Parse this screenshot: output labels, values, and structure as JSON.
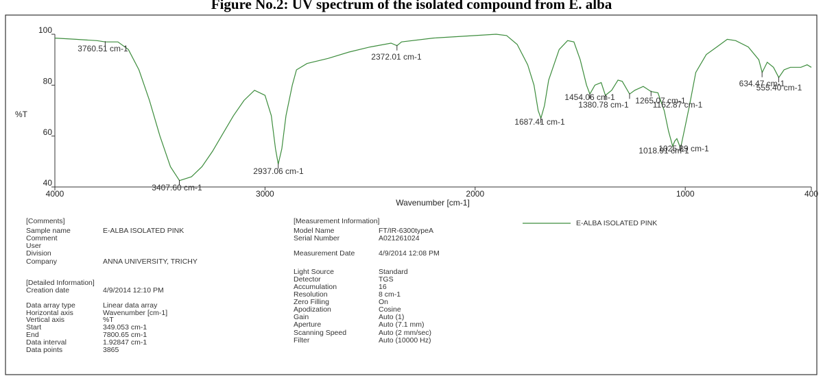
{
  "figure_title": "Figure No.2: UV spectrum of the isolated compound from E. alba",
  "chart_data": {
    "type": "line",
    "xlabel": "Wavenumber [cm-1]",
    "ylabel": "%T",
    "xlim": [
      4000,
      400
    ],
    "ylim": [
      40,
      100
    ],
    "xticks": [
      4000,
      3000,
      2000,
      1000,
      400
    ],
    "yticks": [
      40,
      60,
      80,
      100
    ],
    "series": [
      {
        "name": "E-ALBA ISOLATED PINK",
        "color": "#3c8c3c",
        "x": [
          4000,
          3900,
          3800,
          3760,
          3700,
          3650,
          3600,
          3550,
          3500,
          3450,
          3407,
          3350,
          3300,
          3250,
          3200,
          3150,
          3100,
          3050,
          3000,
          2970,
          2950,
          2937,
          2920,
          2900,
          2870,
          2850,
          2800,
          2700,
          2600,
          2500,
          2400,
          2372,
          2350,
          2200,
          2000,
          1900,
          1850,
          1800,
          1750,
          1720,
          1700,
          1687,
          1670,
          1650,
          1600,
          1560,
          1530,
          1500,
          1470,
          1454,
          1430,
          1400,
          1380,
          1350,
          1320,
          1300,
          1265,
          1240,
          1200,
          1163,
          1130,
          1100,
          1080,
          1060,
          1050,
          1040,
          1026,
          1019,
          1000,
          980,
          950,
          900,
          850,
          800,
          760,
          700,
          650,
          634,
          610,
          580,
          555,
          530,
          500,
          450,
          420,
          400
        ],
        "values": [
          98.5,
          98,
          97.5,
          97,
          97,
          94,
          86,
          74,
          60,
          48,
          42.5,
          44,
          48,
          54,
          61,
          68,
          74,
          78,
          76,
          68,
          55,
          49,
          55,
          68,
          80,
          86,
          88.5,
          90.5,
          93,
          95,
          96.5,
          95.5,
          97,
          98.5,
          99.5,
          100,
          99.5,
          96,
          88,
          80,
          70,
          67,
          72,
          82,
          94,
          97.5,
          97,
          90,
          80,
          76.5,
          80,
          81,
          76,
          78,
          82,
          81.5,
          76.5,
          78,
          79.5,
          77.5,
          77,
          70,
          62,
          56,
          58,
          59,
          56,
          56.5,
          64,
          72,
          85,
          92,
          95,
          98,
          97.5,
          95,
          90,
          85,
          89,
          87,
          83,
          86,
          87,
          87,
          88,
          87
        ]
      }
    ],
    "annotations": [
      {
        "label": "3760.51 cm-1",
        "x": 3760.51,
        "y": 97
      },
      {
        "label": "3407.60 cm-1",
        "x": 3407.6,
        "y": 42.5
      },
      {
        "label": "2937.06 cm-1",
        "x": 2937.06,
        "y": 49
      },
      {
        "label": "2372.01 cm-1",
        "x": 2372.01,
        "y": 95.5
      },
      {
        "label": "1687.41 cm-1",
        "x": 1687.41,
        "y": 67
      },
      {
        "label": "1454.06 cm-1",
        "x": 1454.06,
        "y": 76.5
      },
      {
        "label": "1380.78 cm-1",
        "x": 1380.78,
        "y": 76
      },
      {
        "label": "1265.07 cm-1",
        "x": 1265.07,
        "y": 76.5
      },
      {
        "label": "1162.87 cm-1",
        "x": 1162.87,
        "y": 77.5
      },
      {
        "label": "1025.89 cm-1",
        "x": 1025.89,
        "y": 56
      },
      {
        "label": "1018.91 cm-1",
        "x": 1018.91,
        "y": 56.5
      },
      {
        "label": "634.47 cm-1",
        "x": 634.47,
        "y": 85
      },
      {
        "label": "555.40 cm-1",
        "x": 555.4,
        "y": 83
      }
    ]
  },
  "details": {
    "left": [
      [
        "[Comments]"
      ],
      [
        "Sample name",
        "E-ALBA ISOLATED PINK"
      ],
      [
        "Comment"
      ],
      [
        "User"
      ],
      [
        "Division"
      ],
      [
        "Company",
        "ANNA UNIVERSITY, TRICHY"
      ],
      [
        "[Detailed Information]"
      ],
      [
        "Creation date",
        "4/9/2014 12:10 PM"
      ],
      [
        "Data array type",
        "Linear data array"
      ],
      [
        "Horizontal axis",
        "Wavenumber [cm-1]"
      ],
      [
        "Vertical axis",
        "%T"
      ],
      [
        "Start",
        "349.053 cm-1"
      ],
      [
        "End",
        "7800.65 cm-1"
      ],
      [
        "Data interval",
        "1.92847 cm-1"
      ],
      [
        "Data points",
        "3865"
      ]
    ],
    "middle": [
      [
        "[Measurement Information]"
      ],
      [
        "Model Name",
        "FT/IR-6300typeA"
      ],
      [
        "Serial Number",
        "A021261024"
      ],
      [
        "Measurement Date",
        "4/9/2014 12:08 PM"
      ],
      [
        "Light Source",
        "Standard"
      ],
      [
        "Detector",
        "TGS"
      ],
      [
        "Accumulation",
        "16"
      ],
      [
        "Resolution",
        "8 cm-1"
      ],
      [
        "Zero Filling",
        "On"
      ],
      [
        "Apodization",
        "Cosine"
      ],
      [
        "Gain",
        "Auto (1)"
      ],
      [
        "Aperture",
        "Auto (7.1 mm)"
      ],
      [
        "Scanning Speed",
        "Auto (2 mm/sec)"
      ],
      [
        "Filter",
        "Auto (10000 Hz)"
      ]
    ]
  }
}
